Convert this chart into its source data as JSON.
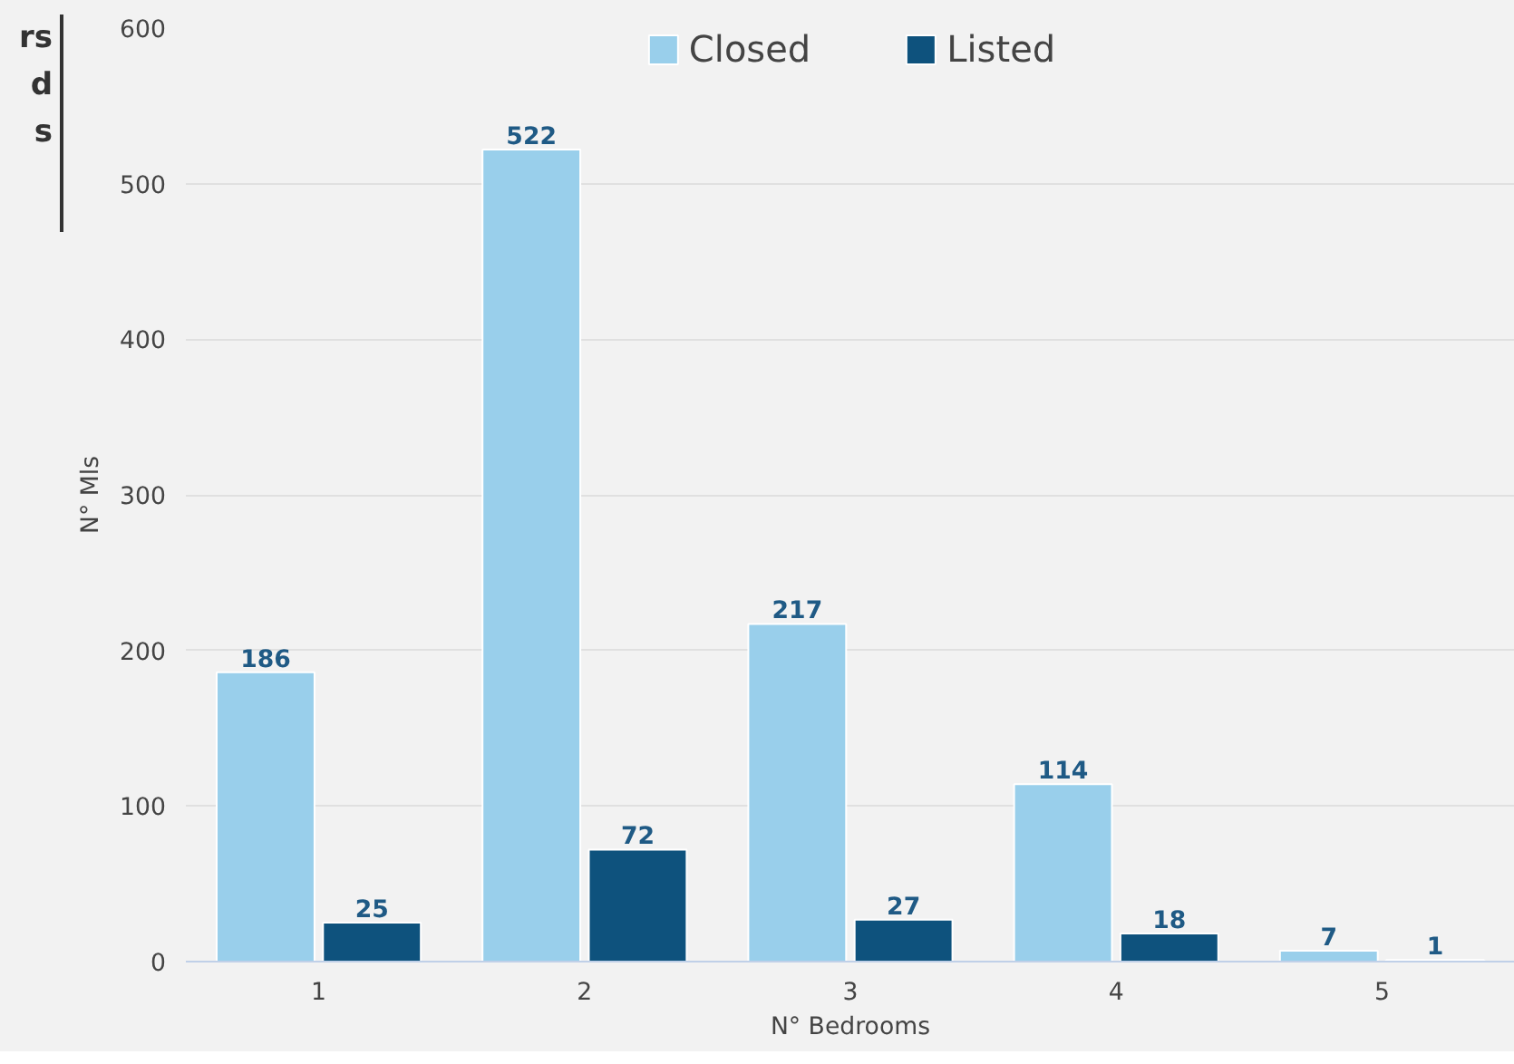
{
  "chart_data": {
    "type": "bar",
    "xlabel": "N° Bedrooms",
    "ylabel": "N° Mls",
    "categories": [
      "1",
      "2",
      "3",
      "4",
      "5"
    ],
    "series": [
      {
        "name": "Closed",
        "color": "#99cfeb",
        "values": [
          186,
          522,
          217,
          114,
          7
        ]
      },
      {
        "name": "Listed",
        "color": "#0e527d",
        "values": [
          25,
          72,
          27,
          18,
          1
        ]
      }
    ],
    "ylim": [
      0,
      600
    ],
    "yticks": [
      0,
      100,
      200,
      300,
      400,
      500,
      600
    ],
    "grid": "y",
    "legend": "top",
    "data_labels": true,
    "annotations": [
      "rs",
      "d",
      "s"
    ]
  }
}
